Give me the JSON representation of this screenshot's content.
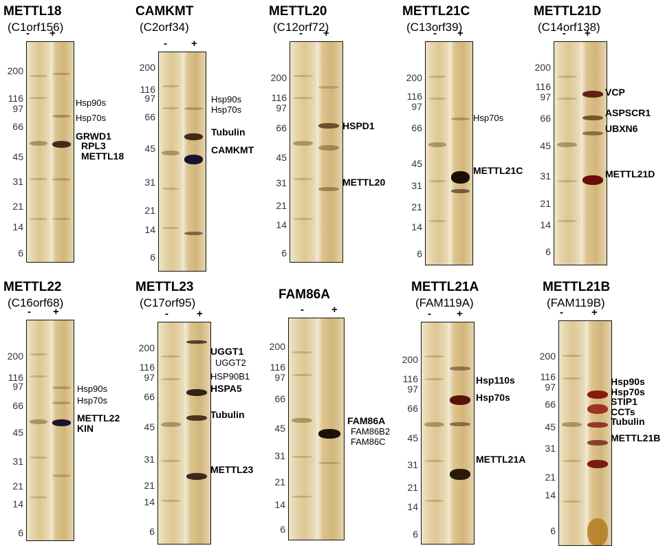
{
  "lane_minus": "-",
  "lane_plus": "+",
  "panels": [
    {
      "title": "METTL18",
      "subtitle": "(C1orf156)",
      "mw": [
        "200",
        "116",
        "97",
        "66",
        "45",
        "31",
        "21",
        "14",
        "6"
      ],
      "annotations": [
        {
          "text": "Hsp90s",
          "bold": false
        },
        {
          "text": "Hsp70s",
          "bold": false
        },
        {
          "text": "GRWD1",
          "bold": true
        },
        {
          "text": "RPL3",
          "bold": true
        },
        {
          "text": "METTL18",
          "bold": true
        }
      ]
    },
    {
      "title": "CAMKMT",
      "subtitle": "(C2orf34)",
      "mw": [
        "200",
        "116",
        "97",
        "66",
        "45",
        "31",
        "21",
        "14",
        "6"
      ],
      "annotations": [
        {
          "text": "Hsp90s",
          "bold": false
        },
        {
          "text": "Hsp70s",
          "bold": false
        },
        {
          "text": "Tubulin",
          "bold": true
        },
        {
          "text": "CAMKMT",
          "bold": true
        }
      ]
    },
    {
      "title": "METTL20",
      "subtitle": "(C12orf72)",
      "mw": [
        "200",
        "116",
        "97",
        "66",
        "45",
        "31",
        "21",
        "14",
        "6"
      ],
      "annotations": [
        {
          "text": "HSPD1",
          "bold": true
        },
        {
          "text": "METTL20",
          "bold": true
        }
      ]
    },
    {
      "title": "METTL21C",
      "subtitle": "(C13orf39)",
      "mw": [
        "200",
        "116",
        "97",
        "66",
        "45",
        "31",
        "21",
        "14",
        "6"
      ],
      "annotations": [
        {
          "text": "Hsp70s",
          "bold": false
        },
        {
          "text": "METTL21C",
          "bold": true
        }
      ]
    },
    {
      "title": "METTL21D",
      "subtitle": "(C14orf138)",
      "mw": [
        "200",
        "116",
        "97",
        "66",
        "45",
        "31",
        "21",
        "14",
        "6"
      ],
      "annotations": [
        {
          "text": "VCP",
          "bold": true
        },
        {
          "text": "ASPSCR1",
          "bold": true
        },
        {
          "text": "UBXN6",
          "bold": true
        },
        {
          "text": "METTL21D",
          "bold": true
        }
      ]
    },
    {
      "title": "METTL22",
      "subtitle": "(C16orf68)",
      "mw": [
        "200",
        "116",
        "97",
        "66",
        "45",
        "31",
        "21",
        "14",
        "6"
      ],
      "annotations": [
        {
          "text": "Hsp90s",
          "bold": false
        },
        {
          "text": "Hsp70s",
          "bold": false
        },
        {
          "text": "METTL22",
          "bold": true
        },
        {
          "text": "KIN",
          "bold": true
        }
      ]
    },
    {
      "title": "METTL23",
      "subtitle": "(C17orf95)",
      "mw": [
        "200",
        "116",
        "97",
        "66",
        "45",
        "31",
        "21",
        "14",
        "6"
      ],
      "annotations": [
        {
          "text": "UGGT1",
          "bold": true
        },
        {
          "text": "UGGT2",
          "bold": false
        },
        {
          "text": "HSP90B1",
          "bold": false
        },
        {
          "text": "HSPA5",
          "bold": true
        },
        {
          "text": "Tubulin",
          "bold": true
        },
        {
          "text": "METTL23",
          "bold": true
        }
      ]
    },
    {
      "title": "FAM86A",
      "subtitle": "",
      "mw": [
        "200",
        "116",
        "97",
        "66",
        "45",
        "31",
        "21",
        "14",
        "6"
      ],
      "annotations": [
        {
          "text": "FAM86A",
          "bold": true
        },
        {
          "text": "FAM86B2",
          "bold": false
        },
        {
          "text": "FAM86C",
          "bold": false
        }
      ]
    },
    {
      "title": "METTL21A",
      "subtitle": "(FAM119A)",
      "mw": [
        "200",
        "116",
        "97",
        "66",
        "45",
        "31",
        "21",
        "14",
        "6"
      ],
      "annotations": [
        {
          "text": "Hsp110s",
          "bold": true
        },
        {
          "text": "Hsp70s",
          "bold": true
        },
        {
          "text": "METTL21A",
          "bold": true
        }
      ]
    },
    {
      "title": "METTL21B",
      "subtitle": "(FAM119B)",
      "mw": [
        "200",
        "116",
        "97",
        "66",
        "45",
        "31",
        "21",
        "14",
        "6"
      ],
      "annotations": [
        {
          "text": "Hsp90s",
          "bold": true
        },
        {
          "text": "Hsp70s",
          "bold": true
        },
        {
          "text": "STIP1",
          "bold": true
        },
        {
          "text": "CCTs",
          "bold": true
        },
        {
          "text": "Tubulin",
          "bold": true
        },
        {
          "text": "METTL21B",
          "bold": true
        }
      ]
    }
  ]
}
